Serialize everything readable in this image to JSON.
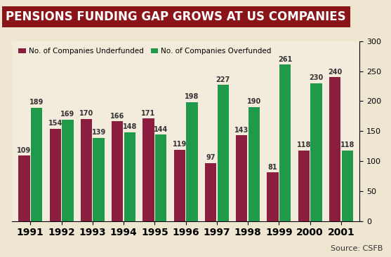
{
  "chart_data": {
    "type": "bar",
    "title": "PENSIONS FUNDING GAP GROWS AT US COMPANIES",
    "source": "Source: CSFB",
    "categories": [
      "1991",
      "1992",
      "1993",
      "1994",
      "1995",
      "1996",
      "1997",
      "1998",
      "1999",
      "2000",
      "2001"
    ],
    "series": [
      {
        "name": "No. of Companies Underfunded",
        "color": "#8b1e3f",
        "values": [
          109,
          154,
          170,
          166,
          171,
          119,
          97,
          143,
          81,
          118,
          240
        ]
      },
      {
        "name": "No. of Companies Overfunded",
        "color": "#1f9a4b",
        "values": [
          189,
          169,
          139,
          148,
          144,
          198,
          227,
          190,
          261,
          230,
          118
        ]
      }
    ],
    "ylim": [
      0,
      300
    ],
    "yticks": [
      0,
      50,
      100,
      150,
      200,
      250,
      300
    ],
    "grid": false,
    "legend": "upper left",
    "data_labels": true
  }
}
